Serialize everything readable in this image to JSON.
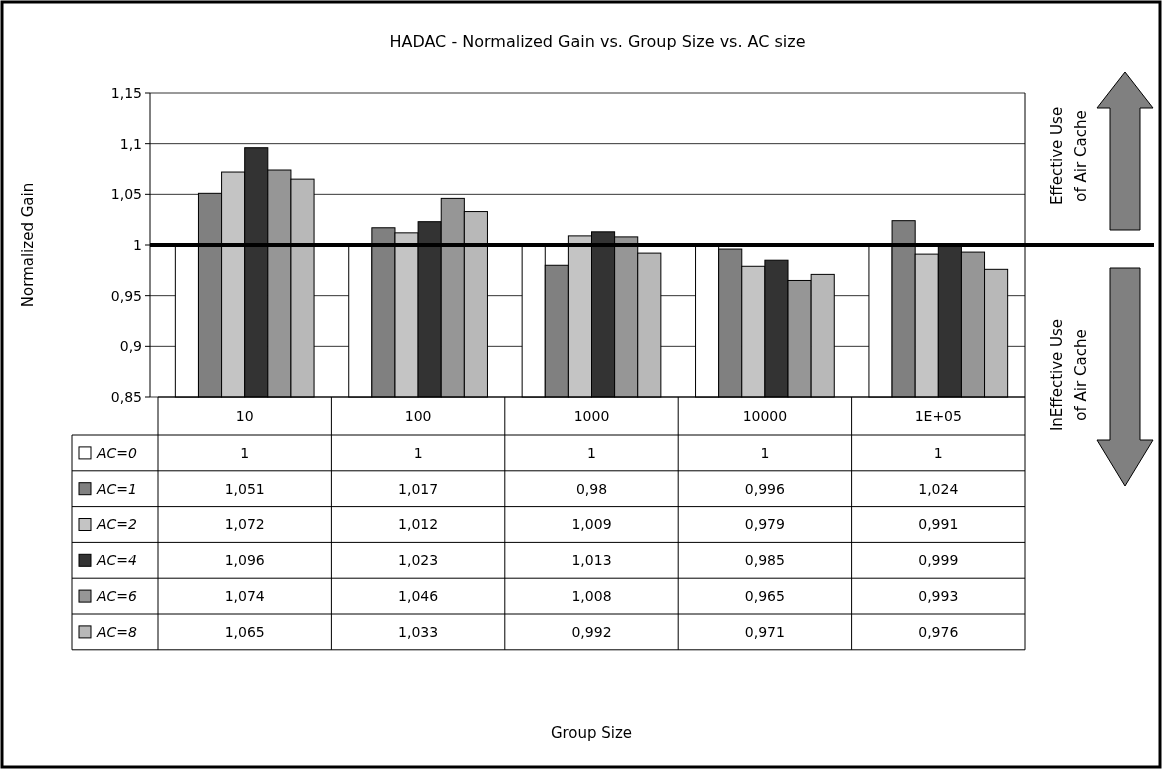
{
  "chart_data": {
    "type": "bar",
    "title": "HADAC - Normalized Gain vs. Group Size vs. AC size",
    "ylabel": "Normalized Gain",
    "categories": [
      "10",
      "100",
      "1000",
      "10000",
      "1E+05"
    ],
    "ylim": [
      0.85,
      1.15
    ],
    "yticks": [
      {
        "value": 0.85,
        "label": "0,85"
      },
      {
        "value": 0.9,
        "label": "0,9"
      },
      {
        "value": 0.95,
        "label": "0,95"
      },
      1,
      {
        "value": 1.05,
        "label": "1,05"
      },
      {
        "value": 1.1,
        "label": "1,1"
      },
      {
        "value": 1.15,
        "label": "1,15"
      }
    ],
    "grid": "y",
    "legend": "bottom",
    "ref_lines": [
      {
        "axis": "y",
        "value": 1,
        "color": "#000000"
      }
    ],
    "annotations": [
      "Effective Use of Air Cache",
      "InEffective Use of Air Cache",
      "Group Size"
    ],
    "series": [
      {
        "name": "AC=0",
        "color": "#ffffff",
        "values": [
          1,
          1,
          1,
          1,
          1
        ],
        "value_labels": [
          "1",
          "1",
          "1",
          "1",
          "1"
        ]
      },
      {
        "name": "AC=1",
        "color": "#808080",
        "values": [
          1.051,
          1.017,
          0.98,
          0.996,
          1.024
        ],
        "value_labels": [
          "1,051",
          "1,017",
          "0,98",
          "0,996",
          "1,024"
        ]
      },
      {
        "name": "AC=2",
        "color": "#c4c4c4",
        "values": [
          1.072,
          1.012,
          1.009,
          0.979,
          0.991
        ],
        "value_labels": [
          "1,072",
          "1,012",
          "1,009",
          "0,979",
          "0,991"
        ]
      },
      {
        "name": "AC=4",
        "color": "#333333",
        "values": [
          1.096,
          1.023,
          1.013,
          0.985,
          0.999
        ],
        "value_labels": [
          "1,096",
          "1,023",
          "1,013",
          "0,985",
          "0,999"
        ]
      },
      {
        "name": "AC=6",
        "color": "#969696",
        "values": [
          1.074,
          1.046,
          1.008,
          0.965,
          0.993
        ],
        "value_labels": [
          "1,074",
          "1,046",
          "1,008",
          "0,965",
          "0,993"
        ]
      },
      {
        "name": "AC=8",
        "color": "#b8b8b8",
        "values": [
          1.065,
          1.033,
          0.992,
          0.971,
          0.976
        ],
        "value_labels": [
          "1,065",
          "1,033",
          "0,992",
          "0,971",
          "0,976"
        ]
      }
    ]
  }
}
